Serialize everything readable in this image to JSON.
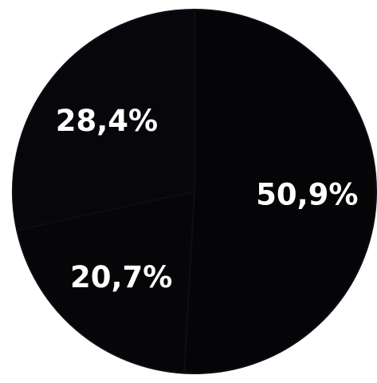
{
  "chart_data": {
    "type": "pie",
    "slices": [
      {
        "label": "50,9%",
        "value": 50.9,
        "color": "#050508"
      },
      {
        "label": "20,7%",
        "value": 20.7,
        "color": "#060609"
      },
      {
        "label": "28,4%",
        "value": 28.4,
        "color": "#07060b"
      }
    ],
    "start": "12 o'clock",
    "direction": "clockwise",
    "legend": "none"
  }
}
